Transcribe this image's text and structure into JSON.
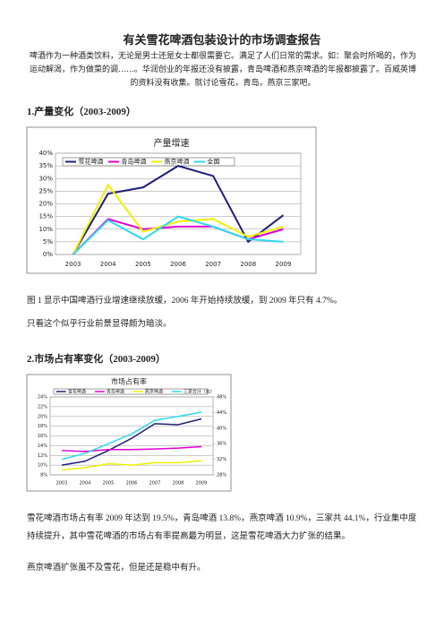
{
  "title": "有关雪花啤酒包装设计的市场调查报告",
  "intro": "啤酒作为一种酒类饮料，无论是男士还是女士都很需要它。满足了人们日常的需求。如：聚会时所喝的，作为运动解渴，作为做菜的调……。华润创业的年报还没有披露，青岛啤酒和燕京啤酒的年报都披露了。百威英博的资料没有收集。就讨论雪花，青岛，燕京三家吧。",
  "section1": {
    "heading": "1.产量变化（2003-2009）",
    "caption": "图 1 显示中国啤酒行业增速继续放缓，2006 年开始持续放缓，到 2009 年只有 4.7%。",
    "note": "只看这个似乎行业前景显得颇为暗淡。"
  },
  "section2": {
    "heading": "2.市场占有率变化（2003-2009）",
    "paragraph": "雪花啤酒市场占有率 2009 年达到 19.5%，青岛啤酒 13.8%，燕京啤酒 10.9%，三家共 44.1%，行业集中度持续提升，其中雪花啤酒的市场占有率提高最为明显，这是雪花啤酒大力扩张的结果。",
    "note": "燕京啤酒扩张虽不及雪花，但是还是稳中有升。"
  },
  "chart_data": [
    {
      "type": "line",
      "title": "产量增速",
      "categories": [
        "2003",
        "2004",
        "2005",
        "2006",
        "2007",
        "2008",
        "2009"
      ],
      "series": [
        {
          "name": "雪花啤酒",
          "color": "#1f1f7a",
          "values": [
            0,
            24,
            26.5,
            35,
            31,
            5,
            15.5
          ]
        },
        {
          "name": "青岛啤酒",
          "color": "#e000d0",
          "values": [
            0,
            14,
            10,
            11,
            11,
            6,
            10
          ]
        },
        {
          "name": "燕京啤酒",
          "color": "#f0f000",
          "values": [
            0,
            27.5,
            9,
            13,
            14,
            7,
            11
          ]
        },
        {
          "name": "全国",
          "color": "#30d8f0",
          "values": [
            0,
            13.5,
            6,
            15,
            11,
            6,
            5
          ]
        }
      ],
      "ylim": [
        0,
        40
      ],
      "yticks": [
        {
          "value": 0,
          "label": "0%"
        },
        {
          "value": 5,
          "label": "5%"
        },
        {
          "value": 10,
          "label": "10%"
        },
        {
          "value": 15,
          "label": "15%"
        },
        {
          "value": 20,
          "label": "20%"
        },
        {
          "value": 25,
          "label": "25%"
        },
        {
          "value": 30,
          "label": "30%"
        },
        {
          "value": 35,
          "label": "35%"
        },
        {
          "value": 40,
          "label": "40%"
        }
      ],
      "grid": true
    },
    {
      "type": "line",
      "title": "市场占有率",
      "categories": [
        "2003",
        "2004",
        "2005",
        "2006",
        "2007",
        "2008",
        "2009"
      ],
      "series": [
        {
          "name": "雪花啤酒",
          "color": "#1f1f7a",
          "values": [
            10,
            10.8,
            13,
            15.5,
            18.5,
            18.3,
            19.5
          ]
        },
        {
          "name": "青岛啤酒",
          "color": "#e000d0",
          "values": [
            13,
            12.8,
            13.2,
            13.2,
            13.3,
            13.5,
            13.8
          ]
        },
        {
          "name": "燕京啤酒",
          "color": "#f0f000",
          "values": [
            9,
            9.5,
            10.3,
            10,
            10.5,
            10.5,
            10.9
          ]
        },
        {
          "name": "三家合计（右）",
          "color": "#30d8f0",
          "axis": "y2",
          "values": [
            32,
            33.5,
            36,
            38.5,
            42,
            43,
            44.1
          ]
        }
      ],
      "ylim": [
        8,
        24
      ],
      "yticks": [
        {
          "value": 8,
          "label": "8%"
        },
        {
          "value": 10,
          "label": "10%"
        },
        {
          "value": 12,
          "label": "12%"
        },
        {
          "value": 14,
          "label": "14%"
        },
        {
          "value": 16,
          "label": "16%"
        },
        {
          "value": 18,
          "label": "18%"
        },
        {
          "value": 20,
          "label": "20%"
        },
        {
          "value": 22,
          "label": "22%"
        },
        {
          "value": 24,
          "label": "24%"
        }
      ],
      "y2lim": [
        28,
        48
      ],
      "y2ticks": [
        {
          "value": 28,
          "label": "28%"
        },
        {
          "value": 32,
          "label": "32%"
        },
        {
          "value": 36,
          "label": "36%"
        },
        {
          "value": 40,
          "label": "40%"
        },
        {
          "value": 44,
          "label": "44%"
        },
        {
          "value": 48,
          "label": "48%"
        }
      ],
      "grid": true
    }
  ]
}
